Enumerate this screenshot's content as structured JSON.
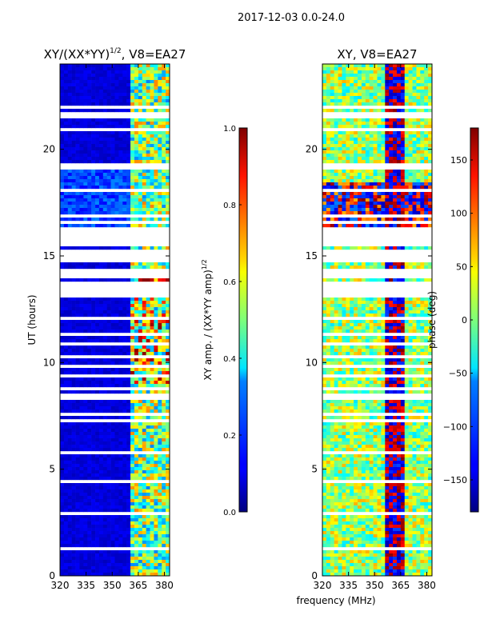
{
  "figure_title": "2017-12-03 0.0-24.0",
  "chart_data": [
    {
      "type": "heatmap",
      "title_main": "XY/(XX*YY)",
      "title_exponent": "1/2",
      "title_suffix": ", V8=EA27",
      "xlabel": "",
      "ylabel": "UT (hours)",
      "x_ticks": [
        "320",
        "335",
        "350",
        "365",
        "380"
      ],
      "x_range": [
        320,
        383
      ],
      "y_ticks": [
        "0",
        "5",
        "10",
        "15",
        "20"
      ],
      "y_range": [
        0,
        24
      ],
      "colorbar": {
        "label_main": "XY amp. / (XX*YY amp)",
        "label_exponent": "1/2",
        "ticks": [
          "0.0",
          "0.2",
          "0.4",
          "0.6",
          "0.8",
          "1.0"
        ],
        "range": [
          0,
          1
        ],
        "colormap": "jet"
      },
      "data_gaps_hours": [
        [
          15.6,
          16.3
        ],
        [
          8.2,
          8.6
        ]
      ]
    },
    {
      "type": "heatmap",
      "title_main": "XY, V8=EA27",
      "xlabel": "frequency (MHz)",
      "ylabel": "",
      "x_ticks": [
        "320",
        "335",
        "350",
        "365",
        "380"
      ],
      "x_range": [
        320,
        383
      ],
      "y_ticks": [
        "0",
        "5",
        "10",
        "15",
        "20"
      ],
      "y_range": [
        0,
        24
      ],
      "colorbar": {
        "label_main": "phase (deg)",
        "ticks": [
          "−150",
          "−100",
          "−50",
          "0",
          "50",
          "100",
          "150"
        ],
        "range": [
          -180,
          180
        ],
        "colormap": "jet"
      },
      "data_gaps_hours": [
        [
          15.6,
          16.3
        ],
        [
          8.2,
          8.6
        ]
      ]
    }
  ]
}
